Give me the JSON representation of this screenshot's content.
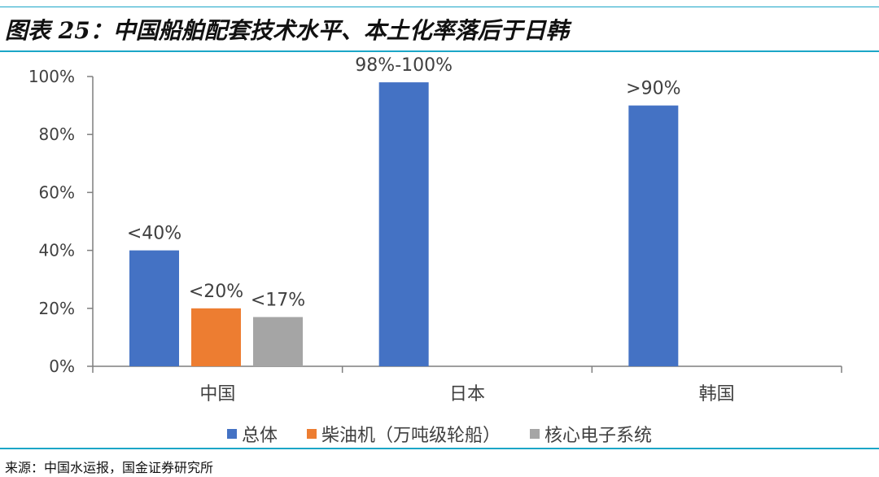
{
  "figure": {
    "title": "图表 25：中国船舶配套技术水平、本土化率落后于日韩",
    "source": "来源：中国水运报，国金证券研究所"
  },
  "chart_data": {
    "type": "bar",
    "categories": [
      "中国",
      "日本",
      "韩国"
    ],
    "series": [
      {
        "name": "总体",
        "color": "#4472c4",
        "values": [
          40,
          98,
          90
        ],
        "labels": [
          "<40%",
          "98%-100%",
          ">90%"
        ]
      },
      {
        "name": "柴油机（万吨级轮船）",
        "color": "#ed7d31",
        "values": [
          20,
          null,
          null
        ],
        "labels": [
          "<20%",
          "",
          ""
        ]
      },
      {
        "name": "核心电子系统",
        "color": "#a5a5a5",
        "values": [
          17,
          null,
          null
        ],
        "labels": [
          "<17%",
          "",
          ""
        ]
      }
    ],
    "ylim": [
      0,
      100
    ],
    "yticks": [
      0,
      20,
      40,
      60,
      80,
      100
    ],
    "ytick_labels": [
      "0%",
      "20%",
      "40%",
      "60%",
      "80%",
      "100%"
    ],
    "grid": false,
    "legend_position": "bottom"
  }
}
